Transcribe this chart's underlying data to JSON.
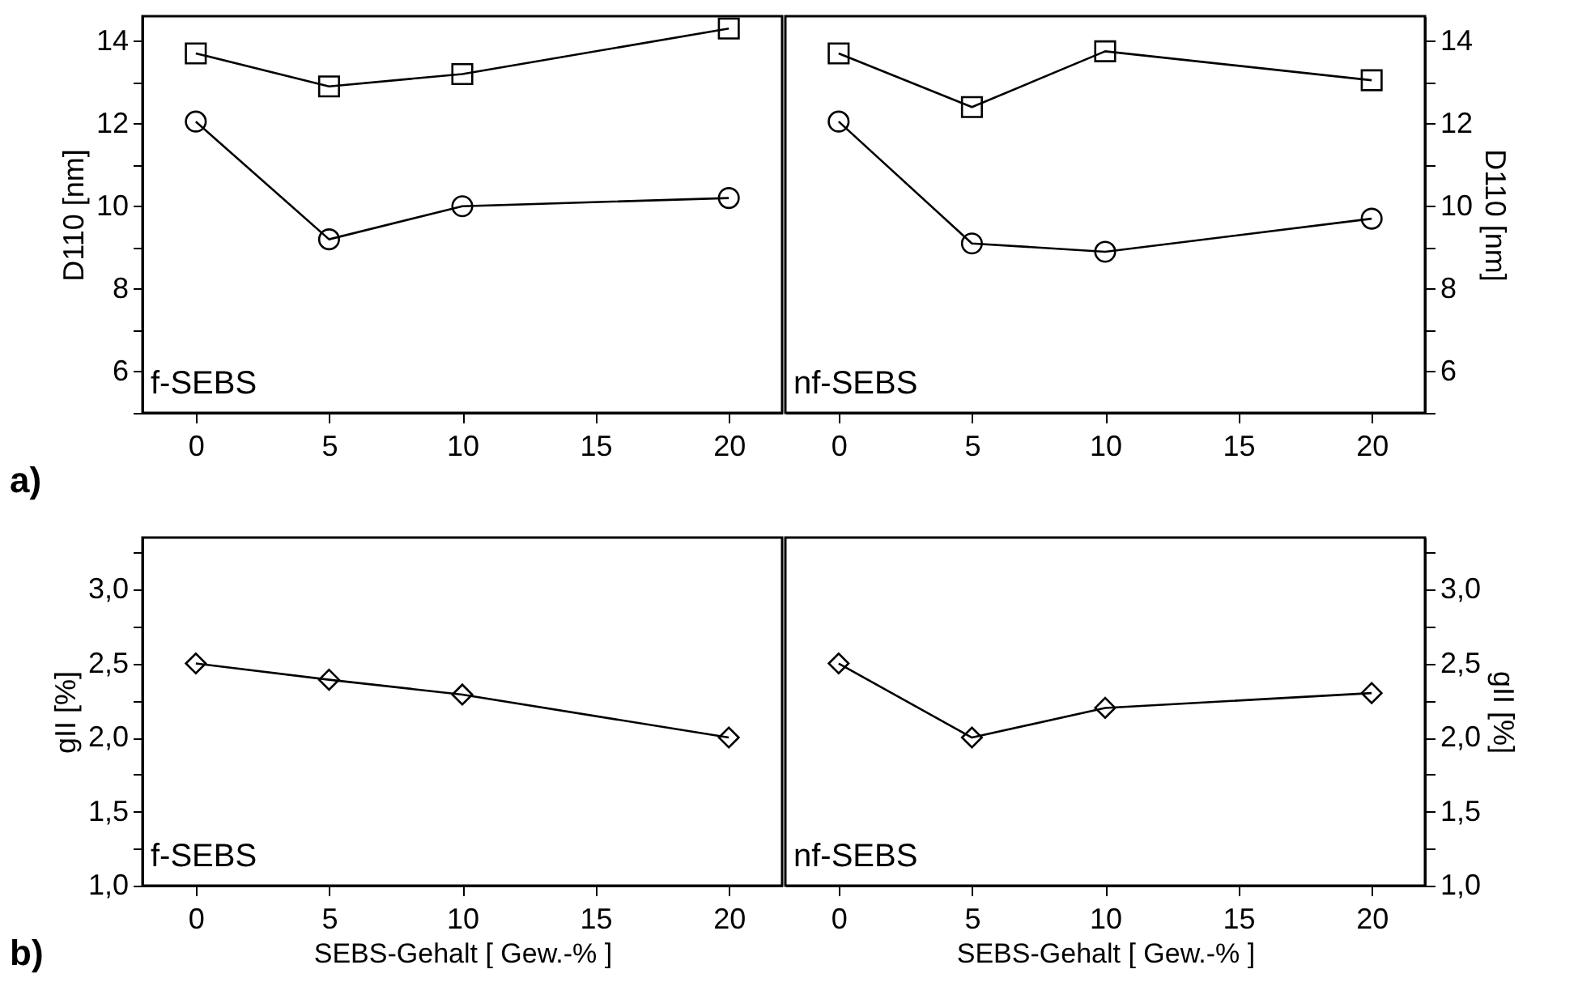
{
  "chart_data": [
    {
      "type": "line",
      "ylabel": "D110 [nm]",
      "annotations": [
        "f-SEBS",
        "a)"
      ],
      "xlim": [
        -2,
        22
      ],
      "xticks": [
        0,
        5,
        10,
        15,
        20
      ],
      "ylim": [
        5,
        14.6
      ],
      "yticks": [
        {
          "value": 5,
          "label": null
        },
        6,
        {
          "value": 7,
          "label": null
        },
        8,
        {
          "value": 9,
          "label": null
        },
        10,
        {
          "value": 11,
          "label": null
        },
        12,
        {
          "value": 13,
          "label": null
        },
        14
      ],
      "x": [
        0,
        5,
        10,
        20
      ],
      "grid": false,
      "line_style": "solid",
      "series": [
        {
          "color": "#000000",
          "marker": "square",
          "values": [
            13.7,
            12.9,
            13.2,
            14.3
          ]
        },
        {
          "color": "#000000",
          "marker": "circle",
          "values": [
            12.05,
            9.2,
            10.0,
            10.2
          ]
        }
      ]
    },
    {
      "type": "line",
      "y2label": "D110 [nm]",
      "annotations": [
        "nf-SEBS"
      ],
      "xlim": [
        -2,
        22
      ],
      "xticks": [
        0,
        5,
        10,
        15,
        20
      ],
      "y2lim": [
        5,
        14.6
      ],
      "y2ticks": [
        {
          "value": 5,
          "label": null
        },
        6,
        {
          "value": 7,
          "label": null
        },
        8,
        {
          "value": 9,
          "label": null
        },
        10,
        {
          "value": 11,
          "label": null
        },
        12,
        {
          "value": 13,
          "label": null
        },
        14
      ],
      "x": [
        0,
        5,
        10,
        20
      ],
      "grid": false,
      "line_style": "solid",
      "series": [
        {
          "color": "#000000",
          "marker": "square",
          "axis": "y2",
          "values": [
            13.7,
            12.4,
            13.75,
            13.05
          ]
        },
        {
          "color": "#000000",
          "marker": "circle",
          "axis": "y2",
          "values": [
            12.05,
            9.1,
            8.9,
            9.7
          ]
        }
      ]
    },
    {
      "type": "line",
      "ylabel": "gII [%]",
      "xlabel": "SEBS-Gehalt [ Gew.-% ]",
      "annotations": [
        "f-SEBS",
        "b)"
      ],
      "xlim": [
        -2,
        22
      ],
      "xticks": [
        0,
        5,
        10,
        15,
        20
      ],
      "ylim": [
        1.0,
        3.35
      ],
      "yticks": [
        {
          "value": 1.0,
          "label": "1,0"
        },
        {
          "value": 1.25,
          "label": null
        },
        {
          "value": 1.5,
          "label": "1,5"
        },
        {
          "value": 1.75,
          "label": null
        },
        {
          "value": 2.0,
          "label": "2,0"
        },
        {
          "value": 2.25,
          "label": null
        },
        {
          "value": 2.5,
          "label": "2,5"
        },
        {
          "value": 2.75,
          "label": null
        },
        {
          "value": 3.0,
          "label": "3,0"
        },
        {
          "value": 3.25,
          "label": null
        }
      ],
      "x": [
        0,
        5,
        10,
        20
      ],
      "grid": false,
      "line_style": "solid",
      "series": [
        {
          "color": "#000000",
          "marker": "diamond",
          "values": [
            2.5,
            2.39,
            2.29,
            2.0
          ]
        }
      ]
    },
    {
      "type": "line",
      "y2label": "gII [%]",
      "xlabel": "SEBS-Gehalt [ Gew.-% ]",
      "annotations": [
        "nf-SEBS"
      ],
      "xlim": [
        -2,
        22
      ],
      "xticks": [
        0,
        5,
        10,
        15,
        20
      ],
      "y2lim": [
        1.0,
        3.35
      ],
      "y2ticks": [
        {
          "value": 1.0,
          "label": "1,0"
        },
        {
          "value": 1.25,
          "label": null
        },
        {
          "value": 1.5,
          "label": "1,5"
        },
        {
          "value": 1.75,
          "label": null
        },
        {
          "value": 2.0,
          "label": "2,0"
        },
        {
          "value": 2.25,
          "label": null
        },
        {
          "value": 2.5,
          "label": "2,5"
        },
        {
          "value": 2.75,
          "label": null
        },
        {
          "value": 3.0,
          "label": "3,0"
        },
        {
          "value": 3.25,
          "label": null
        }
      ],
      "x": [
        0,
        5,
        10,
        20
      ],
      "grid": false,
      "line_style": "solid",
      "series": [
        {
          "color": "#000000",
          "marker": "diamond",
          "axis": "y2",
          "values": [
            2.5,
            2.0,
            2.2,
            2.3
          ]
        }
      ]
    }
  ]
}
